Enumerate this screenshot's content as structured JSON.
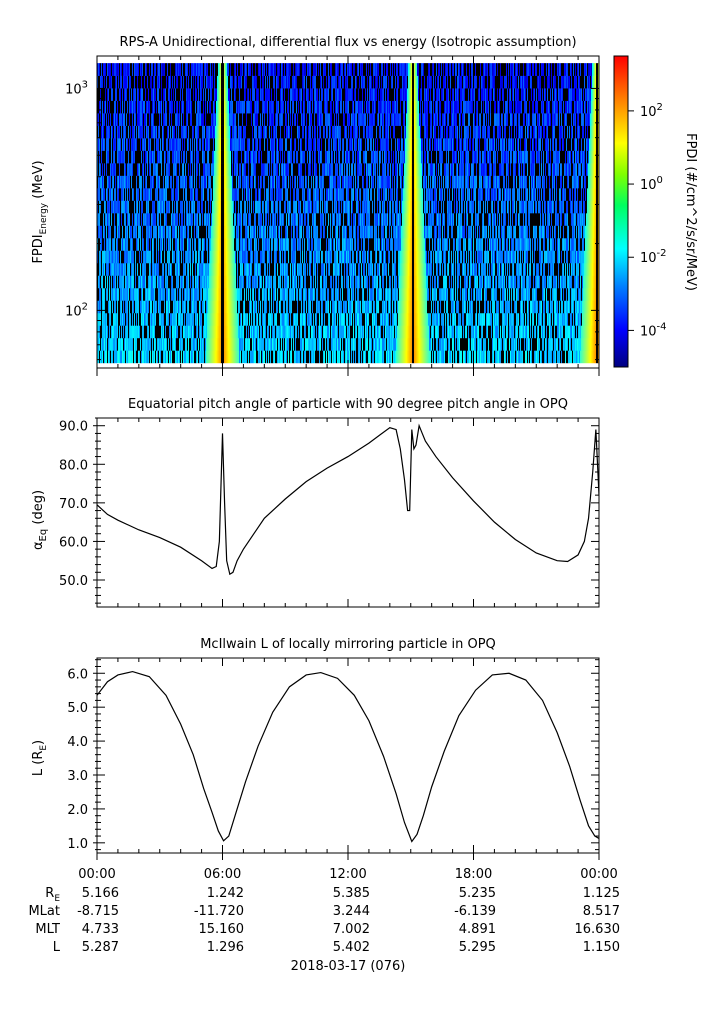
{
  "chart_data": [
    {
      "type": "heatmap",
      "title": "RPS-A Unidirectional, differential flux vs energy (Isotropic assumption)",
      "ylabel": "FPDI",
      "ylabel_sub": "Energy",
      "ylabel_unit": "(MeV)",
      "yscale": "log",
      "ylim": [
        55,
        1400
      ],
      "yticks": [
        {
          "value": 100,
          "base": "10",
          "exp": "2"
        },
        {
          "value": 1000,
          "base": "10",
          "exp": "3"
        }
      ],
      "energy_bin_range": [
        58,
        1300
      ],
      "colorbar": {
        "label": "FPDI (#/cm^2/s/sr/MeV)",
        "scale": "log",
        "range_log10": [
          -5,
          3.5
        ],
        "ticks": [
          {
            "log": -4,
            "base": "10",
            "exp": "-4"
          },
          {
            "log": -2,
            "base": "10",
            "exp": "-2"
          },
          {
            "log": 0,
            "base": "10",
            "exp": "0"
          },
          {
            "log": 2,
            "base": "10",
            "exp": "2"
          }
        ]
      },
      "enhancement_center_hours": [
        6.0,
        15.1,
        23.9
      ],
      "xlim_hours": [
        0,
        24
      ]
    },
    {
      "type": "line",
      "title": "Equatorial pitch angle of particle with 90 degree pitch angle in OPQ",
      "ylabel": "α",
      "ylabel_sub": "Eq",
      "ylabel_unit": "(deg)",
      "ylim": [
        43,
        92
      ],
      "yticks": [
        50,
        60,
        70,
        80,
        90
      ],
      "x_hours": [
        0,
        0.5,
        1,
        2,
        3,
        4,
        5,
        5.5,
        5.7,
        5.85,
        6.0,
        6.1,
        6.2,
        6.35,
        6.5,
        6.7,
        7.0,
        7.5,
        8,
        9,
        10,
        11,
        12,
        13,
        14,
        14.3,
        14.5,
        14.7,
        14.85,
        14.95,
        15.05,
        15.15,
        15.25,
        15.4,
        15.55,
        15.7,
        16.2,
        17,
        18,
        19,
        20,
        21,
        22,
        22.5,
        23.0,
        23.3,
        23.5,
        23.7,
        23.85,
        24.0
      ],
      "values": [
        69.5,
        67,
        65.5,
        63,
        61,
        58.5,
        55,
        53,
        53.5,
        60,
        88,
        70,
        55,
        51.5,
        52,
        55,
        58,
        62,
        66,
        71,
        75.5,
        79,
        82,
        85.5,
        89.5,
        89,
        84,
        76,
        68,
        68,
        89,
        84,
        85,
        90,
        88,
        86,
        82,
        76.5,
        70.5,
        65,
        60.5,
        57,
        55,
        54.8,
        56.5,
        60,
        66,
        78,
        89,
        72
      ]
    },
    {
      "type": "line",
      "title": "McIlwain L of locally mirroring particle in OPQ",
      "ylabel": "L (R",
      "ylabel_sub": "E",
      "ylabel_unit": ")",
      "ylim": [
        0.7,
        6.45
      ],
      "yticks": [
        1.0,
        2.0,
        3.0,
        4.0,
        5.0,
        6.0
      ],
      "x_hours": [
        0,
        0.5,
        1,
        1.7,
        2.5,
        3.3,
        4,
        4.6,
        5.1,
        5.5,
        5.8,
        6.05,
        6.3,
        6.6,
        7.1,
        7.7,
        8.4,
        9.2,
        10.0,
        10.7,
        11.5,
        12.3,
        13.0,
        13.7,
        14.3,
        14.7,
        15.05,
        15.3,
        15.6,
        16.0,
        16.6,
        17.3,
        18.1,
        18.9,
        19.7,
        20.5,
        21.3,
        22.0,
        22.6,
        23.1,
        23.5,
        23.8,
        24.0
      ],
      "values": [
        5.35,
        5.75,
        5.95,
        6.05,
        5.9,
        5.35,
        4.5,
        3.6,
        2.6,
        1.9,
        1.35,
        1.06,
        1.2,
        1.8,
        2.8,
        3.85,
        4.85,
        5.6,
        5.95,
        6.02,
        5.85,
        5.35,
        4.6,
        3.55,
        2.45,
        1.6,
        1.04,
        1.25,
        1.8,
        2.65,
        3.7,
        4.75,
        5.5,
        5.95,
        6.0,
        5.8,
        5.2,
        4.25,
        3.25,
        2.25,
        1.5,
        1.2,
        1.13
      ]
    }
  ],
  "xaxis": {
    "tick_hours": [
      0,
      6,
      12,
      18,
      24
    ],
    "tick_labels": [
      "00:00",
      "06:00",
      "12:00",
      "18:00",
      "00:00"
    ],
    "date_label": "2018-03-17 (076)"
  },
  "ephemeris": {
    "row_labels": [
      "R",
      "MLat",
      "MLT",
      "L"
    ],
    "r_subscript": "E",
    "rows": [
      [
        "5.166",
        "1.242",
        "5.385",
        "5.235",
        "1.125"
      ],
      [
        "-8.715",
        "-11.720",
        "3.244",
        "-6.139",
        "8.517"
      ],
      [
        "4.733",
        "15.160",
        "7.002",
        "4.891",
        "16.630"
      ],
      [
        "5.287",
        "1.296",
        "5.402",
        "5.295",
        "1.150"
      ]
    ]
  }
}
